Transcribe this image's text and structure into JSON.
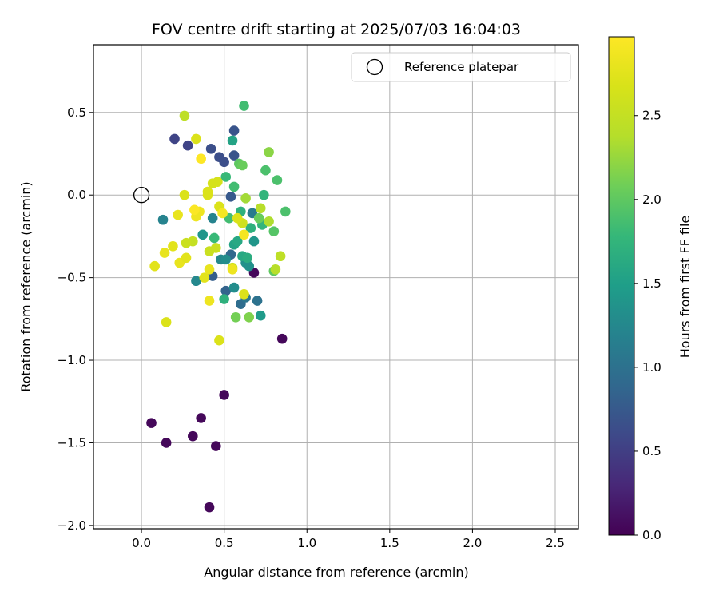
{
  "chart_data": {
    "type": "scatter",
    "title": "FOV centre drift starting at 2025/07/03 16:04:03",
    "xlabel": "Angular distance from reference (arcmin)",
    "ylabel": "Rotation from reference (arcmin)",
    "xlim": [
      -0.29,
      2.64
    ],
    "ylim": [
      -2.02,
      0.91
    ],
    "xticks": [
      0.0,
      0.5,
      1.0,
      1.5,
      2.0,
      2.5
    ],
    "xtick_labels": [
      "0.0",
      "0.5",
      "1.0",
      "1.5",
      "2.0",
      "2.5"
    ],
    "yticks": [
      0.5,
      0.0,
      -0.5,
      -1.0,
      -1.5,
      -2.0
    ],
    "ytick_labels": [
      "0.5",
      "0.0",
      "−0.5",
      "−1.0",
      "−1.5",
      "−2.0"
    ],
    "grid": true,
    "legend": {
      "placement": "top-right",
      "entries": [
        {
          "label": "Reference platepar",
          "marker": "open-circle"
        }
      ]
    },
    "reference_point": {
      "x": 0.0,
      "y": 0.0
    },
    "colorbar": {
      "label": "Hours from first FF file",
      "colormap": "viridis",
      "range": [
        0.0,
        2.97
      ],
      "ticks": [
        0.0,
        0.5,
        1.0,
        1.5,
        2.0,
        2.5
      ],
      "tick_labels": [
        "0.0",
        "0.5",
        "1.0",
        "1.5",
        "2.0",
        "2.5"
      ]
    },
    "points": [
      {
        "x": 0.41,
        "y": -1.89,
        "c": 0.05
      },
      {
        "x": 0.45,
        "y": -1.52,
        "c": 0.05
      },
      {
        "x": 0.15,
        "y": -1.5,
        "c": 0.05
      },
      {
        "x": 0.31,
        "y": -1.46,
        "c": 0.05
      },
      {
        "x": 0.06,
        "y": -1.38,
        "c": 0.05
      },
      {
        "x": 0.36,
        "y": -1.35,
        "c": 0.05
      },
      {
        "x": 0.5,
        "y": -1.21,
        "c": 0.05
      },
      {
        "x": 0.85,
        "y": -0.87,
        "c": 0.05
      },
      {
        "x": 0.68,
        "y": -0.47,
        "c": 0.05
      },
      {
        "x": 0.2,
        "y": 0.34,
        "c": 0.55
      },
      {
        "x": 0.28,
        "y": 0.3,
        "c": 0.55
      },
      {
        "x": 0.42,
        "y": 0.28,
        "c": 0.65
      },
      {
        "x": 0.47,
        "y": 0.23,
        "c": 0.65
      },
      {
        "x": 0.5,
        "y": 0.2,
        "c": 0.65
      },
      {
        "x": 0.56,
        "y": 0.39,
        "c": 0.7
      },
      {
        "x": 0.56,
        "y": 0.24,
        "c": 0.7
      },
      {
        "x": 0.54,
        "y": -0.01,
        "c": 0.75
      },
      {
        "x": 0.43,
        "y": -0.49,
        "c": 0.8
      },
      {
        "x": 0.51,
        "y": -0.58,
        "c": 0.85
      },
      {
        "x": 0.54,
        "y": -0.36,
        "c": 0.9
      },
      {
        "x": 0.6,
        "y": -0.66,
        "c": 0.95
      },
      {
        "x": 0.7,
        "y": -0.64,
        "c": 1.0
      },
      {
        "x": 0.63,
        "y": -0.62,
        "c": 1.05
      },
      {
        "x": 0.67,
        "y": -0.11,
        "c": 1.1
      },
      {
        "x": 0.13,
        "y": -0.15,
        "c": 1.2
      },
      {
        "x": 0.43,
        "y": -0.14,
        "c": 1.2
      },
      {
        "x": 0.33,
        "y": -0.52,
        "c": 1.25
      },
      {
        "x": 0.48,
        "y": -0.39,
        "c": 1.25
      },
      {
        "x": 0.51,
        "y": -0.39,
        "c": 1.3
      },
      {
        "x": 0.56,
        "y": -0.56,
        "c": 1.3
      },
      {
        "x": 0.63,
        "y": -0.41,
        "c": 1.35
      },
      {
        "x": 0.65,
        "y": -0.43,
        "c": 1.35
      },
      {
        "x": 0.68,
        "y": -0.28,
        "c": 1.4
      },
      {
        "x": 0.72,
        "y": -0.73,
        "c": 1.45
      },
      {
        "x": 0.37,
        "y": -0.24,
        "c": 1.4
      },
      {
        "x": 0.55,
        "y": 0.33,
        "c": 1.55
      },
      {
        "x": 0.56,
        "y": -0.3,
        "c": 1.55
      },
      {
        "x": 0.58,
        "y": -0.28,
        "c": 1.6
      },
      {
        "x": 0.61,
        "y": -0.37,
        "c": 1.6
      },
      {
        "x": 0.64,
        "y": -0.38,
        "c": 1.65
      },
      {
        "x": 0.5,
        "y": -0.63,
        "c": 1.7
      },
      {
        "x": 0.6,
        "y": -0.1,
        "c": 1.7
      },
      {
        "x": 0.66,
        "y": -0.2,
        "c": 1.7
      },
      {
        "x": 0.73,
        "y": -0.18,
        "c": 1.75
      },
      {
        "x": 0.74,
        "y": 0.0,
        "c": 1.75
      },
      {
        "x": 0.51,
        "y": 0.11,
        "c": 1.8
      },
      {
        "x": 0.56,
        "y": 0.05,
        "c": 1.85
      },
      {
        "x": 0.53,
        "y": -0.14,
        "c": 1.85
      },
      {
        "x": 0.44,
        "y": -0.26,
        "c": 1.8
      },
      {
        "x": 0.62,
        "y": 0.54,
        "c": 1.85
      },
      {
        "x": 0.75,
        "y": 0.15,
        "c": 1.9
      },
      {
        "x": 0.82,
        "y": 0.09,
        "c": 1.9
      },
      {
        "x": 0.87,
        "y": -0.1,
        "c": 1.9
      },
      {
        "x": 0.8,
        "y": -0.22,
        "c": 1.95
      },
      {
        "x": 0.8,
        "y": -0.46,
        "c": 2.0
      },
      {
        "x": 0.59,
        "y": 0.19,
        "c": 2.0
      },
      {
        "x": 0.71,
        "y": -0.14,
        "c": 2.05
      },
      {
        "x": 0.61,
        "y": 0.18,
        "c": 2.05
      },
      {
        "x": 0.57,
        "y": -0.74,
        "c": 2.1
      },
      {
        "x": 0.65,
        "y": -0.74,
        "c": 2.15
      },
      {
        "x": 0.77,
        "y": 0.26,
        "c": 2.2
      },
      {
        "x": 0.63,
        "y": -0.02,
        "c": 2.3
      },
      {
        "x": 0.77,
        "y": -0.16,
        "c": 2.35
      },
      {
        "x": 0.72,
        "y": -0.08,
        "c": 2.4
      },
      {
        "x": 0.81,
        "y": -0.45,
        "c": 2.4
      },
      {
        "x": 0.84,
        "y": -0.37,
        "c": 2.45
      },
      {
        "x": 0.26,
        "y": 0.48,
        "c": 2.45
      },
      {
        "x": 0.31,
        "y": -0.28,
        "c": 2.5
      },
      {
        "x": 0.27,
        "y": -0.29,
        "c": 2.55
      },
      {
        "x": 0.41,
        "y": -0.34,
        "c": 2.55
      },
      {
        "x": 0.45,
        "y": -0.32,
        "c": 2.55
      },
      {
        "x": 0.55,
        "y": -0.44,
        "c": 2.6
      },
      {
        "x": 0.61,
        "y": -0.17,
        "c": 2.6
      },
      {
        "x": 0.43,
        "y": 0.07,
        "c": 2.65
      },
      {
        "x": 0.46,
        "y": 0.08,
        "c": 2.65
      },
      {
        "x": 0.4,
        "y": 0.02,
        "c": 2.7
      },
      {
        "x": 0.4,
        "y": 0.0,
        "c": 2.7
      },
      {
        "x": 0.26,
        "y": 0.0,
        "c": 2.7
      },
      {
        "x": 0.33,
        "y": 0.34,
        "c": 2.7
      },
      {
        "x": 0.47,
        "y": -0.07,
        "c": 2.7
      },
      {
        "x": 0.58,
        "y": -0.14,
        "c": 2.7
      },
      {
        "x": 0.62,
        "y": -0.6,
        "c": 2.7
      },
      {
        "x": 0.47,
        "y": -0.88,
        "c": 2.7
      },
      {
        "x": 0.15,
        "y": -0.77,
        "c": 2.7
      },
      {
        "x": 0.19,
        "y": -0.31,
        "c": 2.75
      },
      {
        "x": 0.08,
        "y": -0.43,
        "c": 2.75
      },
      {
        "x": 0.14,
        "y": -0.35,
        "c": 2.8
      },
      {
        "x": 0.22,
        "y": -0.12,
        "c": 2.8
      },
      {
        "x": 0.23,
        "y": -0.41,
        "c": 2.8
      },
      {
        "x": 0.27,
        "y": -0.38,
        "c": 2.75
      },
      {
        "x": 0.38,
        "y": -0.5,
        "c": 2.75
      },
      {
        "x": 0.41,
        "y": -0.45,
        "c": 2.8
      },
      {
        "x": 0.41,
        "y": -0.64,
        "c": 2.85
      },
      {
        "x": 0.35,
        "y": -0.1,
        "c": 2.85
      },
      {
        "x": 0.33,
        "y": -0.13,
        "c": 2.85
      },
      {
        "x": 0.49,
        "y": -0.11,
        "c": 2.9
      },
      {
        "x": 0.55,
        "y": -0.45,
        "c": 2.85
      },
      {
        "x": 0.62,
        "y": -0.24,
        "c": 2.9
      },
      {
        "x": 0.32,
        "y": -0.09,
        "c": 2.95
      },
      {
        "x": 0.36,
        "y": 0.22,
        "c": 2.97
      }
    ]
  }
}
